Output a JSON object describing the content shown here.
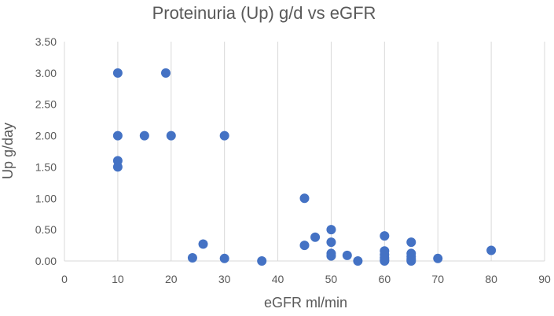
{
  "chart_data": {
    "type": "scatter",
    "title": "Proteinuria (Up) g/d vs eGFR",
    "xlabel": "eGFR ml/min",
    "ylabel": "Up g/day",
    "xlim": [
      0,
      90
    ],
    "ylim": [
      0,
      3.5
    ],
    "x_ticks": [
      0,
      10,
      20,
      30,
      40,
      50,
      60,
      70,
      80,
      90
    ],
    "y_ticks": [
      "0.00",
      "0.50",
      "1.00",
      "1.50",
      "2.00",
      "2.50",
      "3.00",
      "3.50"
    ],
    "grid": "vertical",
    "colors": {
      "marker": "#4472c4",
      "grid": "#d9d9d9",
      "text": "#595959"
    },
    "series": [
      {
        "name": "Up",
        "points": [
          [
            10,
            3.0
          ],
          [
            19,
            3.0
          ],
          [
            10,
            2.0
          ],
          [
            15,
            2.0
          ],
          [
            20,
            2.0
          ],
          [
            30,
            2.0
          ],
          [
            10,
            1.6
          ],
          [
            10,
            1.5
          ],
          [
            45,
            1.0
          ],
          [
            50,
            0.5
          ],
          [
            60,
            0.4
          ],
          [
            47,
            0.38
          ],
          [
            65,
            0.3
          ],
          [
            50,
            0.3
          ],
          [
            26,
            0.27
          ],
          [
            45,
            0.25
          ],
          [
            80,
            0.17
          ],
          [
            60,
            0.16
          ],
          [
            50,
            0.12
          ],
          [
            65,
            0.12
          ],
          [
            60,
            0.1
          ],
          [
            53,
            0.09
          ],
          [
            50,
            0.08
          ],
          [
            65,
            0.07
          ],
          [
            60,
            0.05
          ],
          [
            24,
            0.05
          ],
          [
            30,
            0.04
          ],
          [
            70,
            0.04
          ],
          [
            65,
            0.03
          ],
          [
            60,
            0.02
          ],
          [
            37,
            0.0
          ],
          [
            55,
            0.0
          ],
          [
            60,
            0.0
          ],
          [
            65,
            0.0
          ]
        ]
      }
    ]
  }
}
